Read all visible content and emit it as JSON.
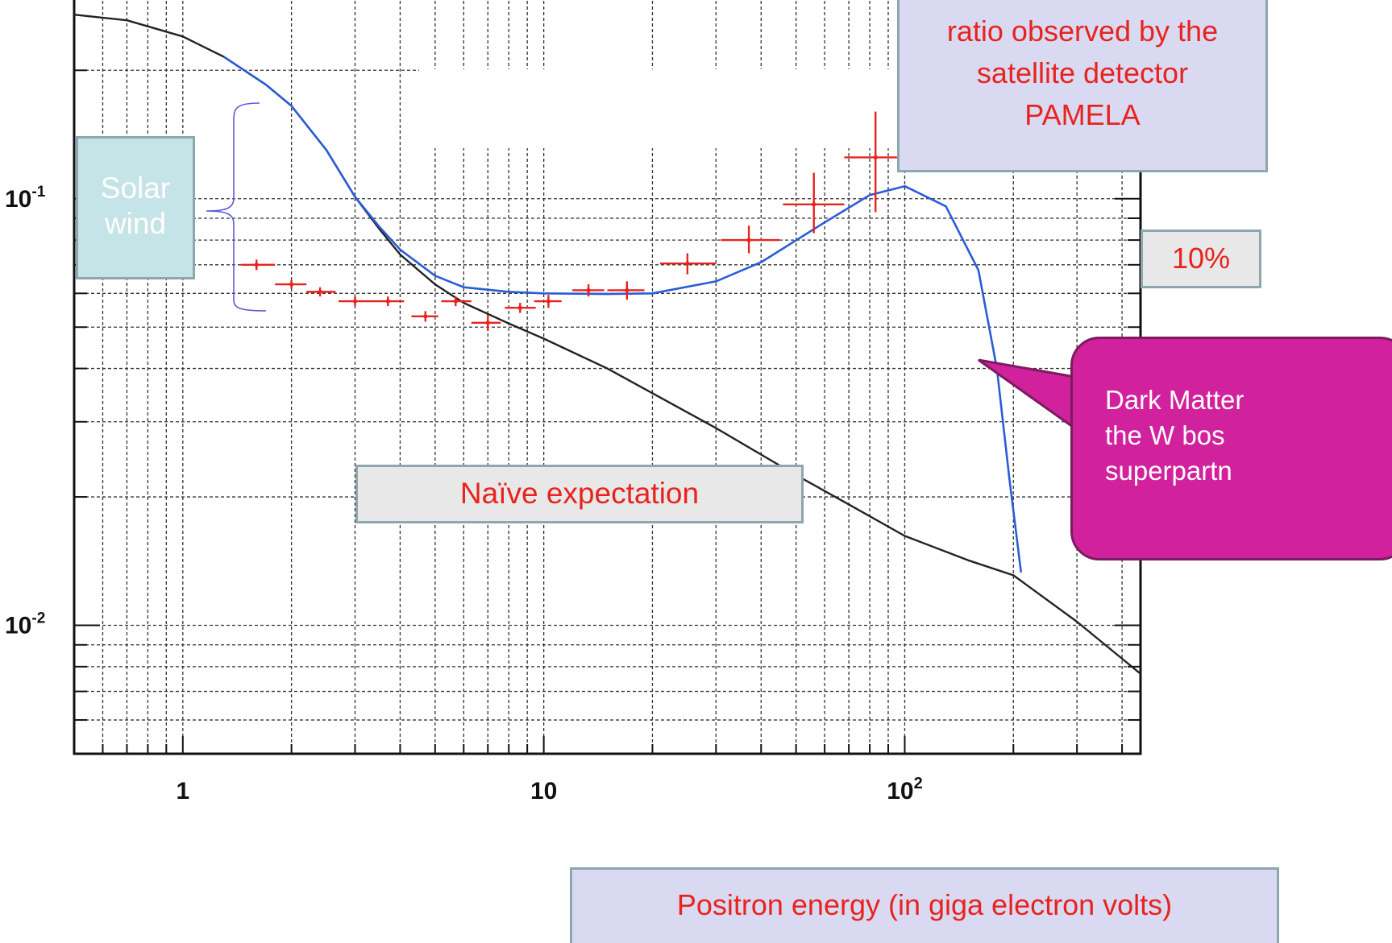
{
  "chart_data": {
    "type": "line",
    "x_scale": "log",
    "y_scale": "log",
    "xlim": [
      0.5,
      450
    ],
    "ylim": [
      0.005,
      0.3
    ],
    "grid": true,
    "legend": "none",
    "x_tick_labels": [
      {
        "value": 1,
        "base": "1",
        "exp": ""
      },
      {
        "value": 10,
        "base": "10",
        "exp": ""
      },
      {
        "value": 100,
        "base": "10",
        "exp": "2"
      }
    ],
    "y_tick_labels": [
      {
        "value": 0.1,
        "base": "10",
        "exp": "-1"
      },
      {
        "value": 0.01,
        "base": "10",
        "exp": "-2"
      }
    ],
    "series": [
      {
        "color": "#222222",
        "x": [
          0.5,
          0.7,
          1.0,
          1.3,
          1.7,
          2.0,
          2.5,
          3.0,
          3.5,
          4.0,
          5.0,
          6.0,
          8.0,
          10,
          15,
          20,
          30,
          50,
          70,
          100,
          150,
          200,
          300,
          450
        ],
        "y": [
          0.27,
          0.262,
          0.24,
          0.215,
          0.185,
          0.165,
          0.13,
          0.101,
          0.085,
          0.074,
          0.063,
          0.057,
          0.051,
          0.047,
          0.04,
          0.035,
          0.029,
          0.0225,
          0.0192,
          0.0162,
          0.0142,
          0.0131,
          0.0102,
          0.0077
        ]
      },
      {
        "color": "#2a5cd6",
        "x": [
          1.3,
          1.7,
          2.0,
          2.5,
          3.0,
          3.5,
          4.0,
          5.0,
          6.0,
          8.0,
          10,
          15,
          20,
          30,
          40,
          60,
          80,
          100,
          130,
          160,
          180,
          195,
          210
        ],
        "y": [
          0.215,
          0.185,
          0.165,
          0.13,
          0.101,
          0.086,
          0.076,
          0.066,
          0.062,
          0.0605,
          0.06,
          0.0598,
          0.06,
          0.064,
          0.071,
          0.088,
          0.102,
          0.107,
          0.096,
          0.068,
          0.04,
          0.022,
          0.0133
        ]
      }
    ],
    "measurements": {
      "color": "#e8231e",
      "points": [
        {
          "x": 1.6,
          "y": 0.07,
          "xlo": 1.45,
          "xhi": 1.8,
          "ylo": 0.068,
          "yhi": 0.072
        },
        {
          "x": 2.0,
          "y": 0.063,
          "xlo": 1.8,
          "xhi": 2.2,
          "ylo": 0.0615,
          "yhi": 0.0645
        },
        {
          "x": 2.4,
          "y": 0.0605,
          "xlo": 2.2,
          "xhi": 2.65,
          "ylo": 0.059,
          "yhi": 0.062
        },
        {
          "x": 3.0,
          "y": 0.0575,
          "xlo": 2.7,
          "xhi": 3.3,
          "ylo": 0.056,
          "yhi": 0.059
        },
        {
          "x": 3.7,
          "y": 0.0575,
          "xlo": 3.3,
          "xhi": 4.1,
          "ylo": 0.056,
          "yhi": 0.059
        },
        {
          "x": 4.7,
          "y": 0.053,
          "xlo": 4.3,
          "xhi": 5.1,
          "ylo": 0.0515,
          "yhi": 0.0545
        },
        {
          "x": 5.7,
          "y": 0.0575,
          "xlo": 5.2,
          "xhi": 6.3,
          "ylo": 0.056,
          "yhi": 0.059
        },
        {
          "x": 7.0,
          "y": 0.0512,
          "xlo": 6.3,
          "xhi": 7.6,
          "ylo": 0.049,
          "yhi": 0.0535
        },
        {
          "x": 8.6,
          "y": 0.0555,
          "xlo": 7.8,
          "xhi": 9.5,
          "ylo": 0.054,
          "yhi": 0.057
        },
        {
          "x": 10.3,
          "y": 0.0575,
          "xlo": 9.4,
          "xhi": 11.2,
          "ylo": 0.0555,
          "yhi": 0.0595
        },
        {
          "x": 13.3,
          "y": 0.061,
          "xlo": 12.0,
          "xhi": 14.7,
          "ylo": 0.059,
          "yhi": 0.063
        },
        {
          "x": 17.0,
          "y": 0.061,
          "xlo": 15.0,
          "xhi": 19.0,
          "ylo": 0.058,
          "yhi": 0.064
        },
        {
          "x": 25.0,
          "y": 0.0705,
          "xlo": 21.0,
          "xhi": 30.0,
          "ylo": 0.0665,
          "yhi": 0.0745
        },
        {
          "x": 37.0,
          "y": 0.08,
          "xlo": 31.0,
          "xhi": 45.0,
          "ylo": 0.0745,
          "yhi": 0.0865
        },
        {
          "x": 56.0,
          "y": 0.097,
          "xlo": 46.0,
          "xhi": 68.0,
          "ylo": 0.083,
          "yhi": 0.115
        },
        {
          "x": 83.0,
          "y": 0.125,
          "xlo": 68.0,
          "xhi": 100.0,
          "ylo": 0.093,
          "yhi": 0.16
        }
      ]
    }
  },
  "annotations": {
    "title_lines": [
      "ratio observed by the",
      "satellite detector",
      "PAMELA"
    ],
    "solar_wind_lines": [
      "Solar",
      "wind"
    ],
    "percent_label": "10%",
    "naive_label": "Naïve expectation",
    "x_axis_label": "Positron energy (in giga electron volts)",
    "dark_matter_lines": [
      "Dark Matter",
      "the W bos",
      "superpartn"
    ]
  },
  "colors": {
    "accent_text": "#e8231e",
    "callout_border": "#8ea6ad",
    "lavender_fill": "#d9d9f2",
    "teal_fill": "#c5e4e7",
    "gray_fill": "#e8e8e8",
    "magenta_fill": "#d1219d"
  }
}
